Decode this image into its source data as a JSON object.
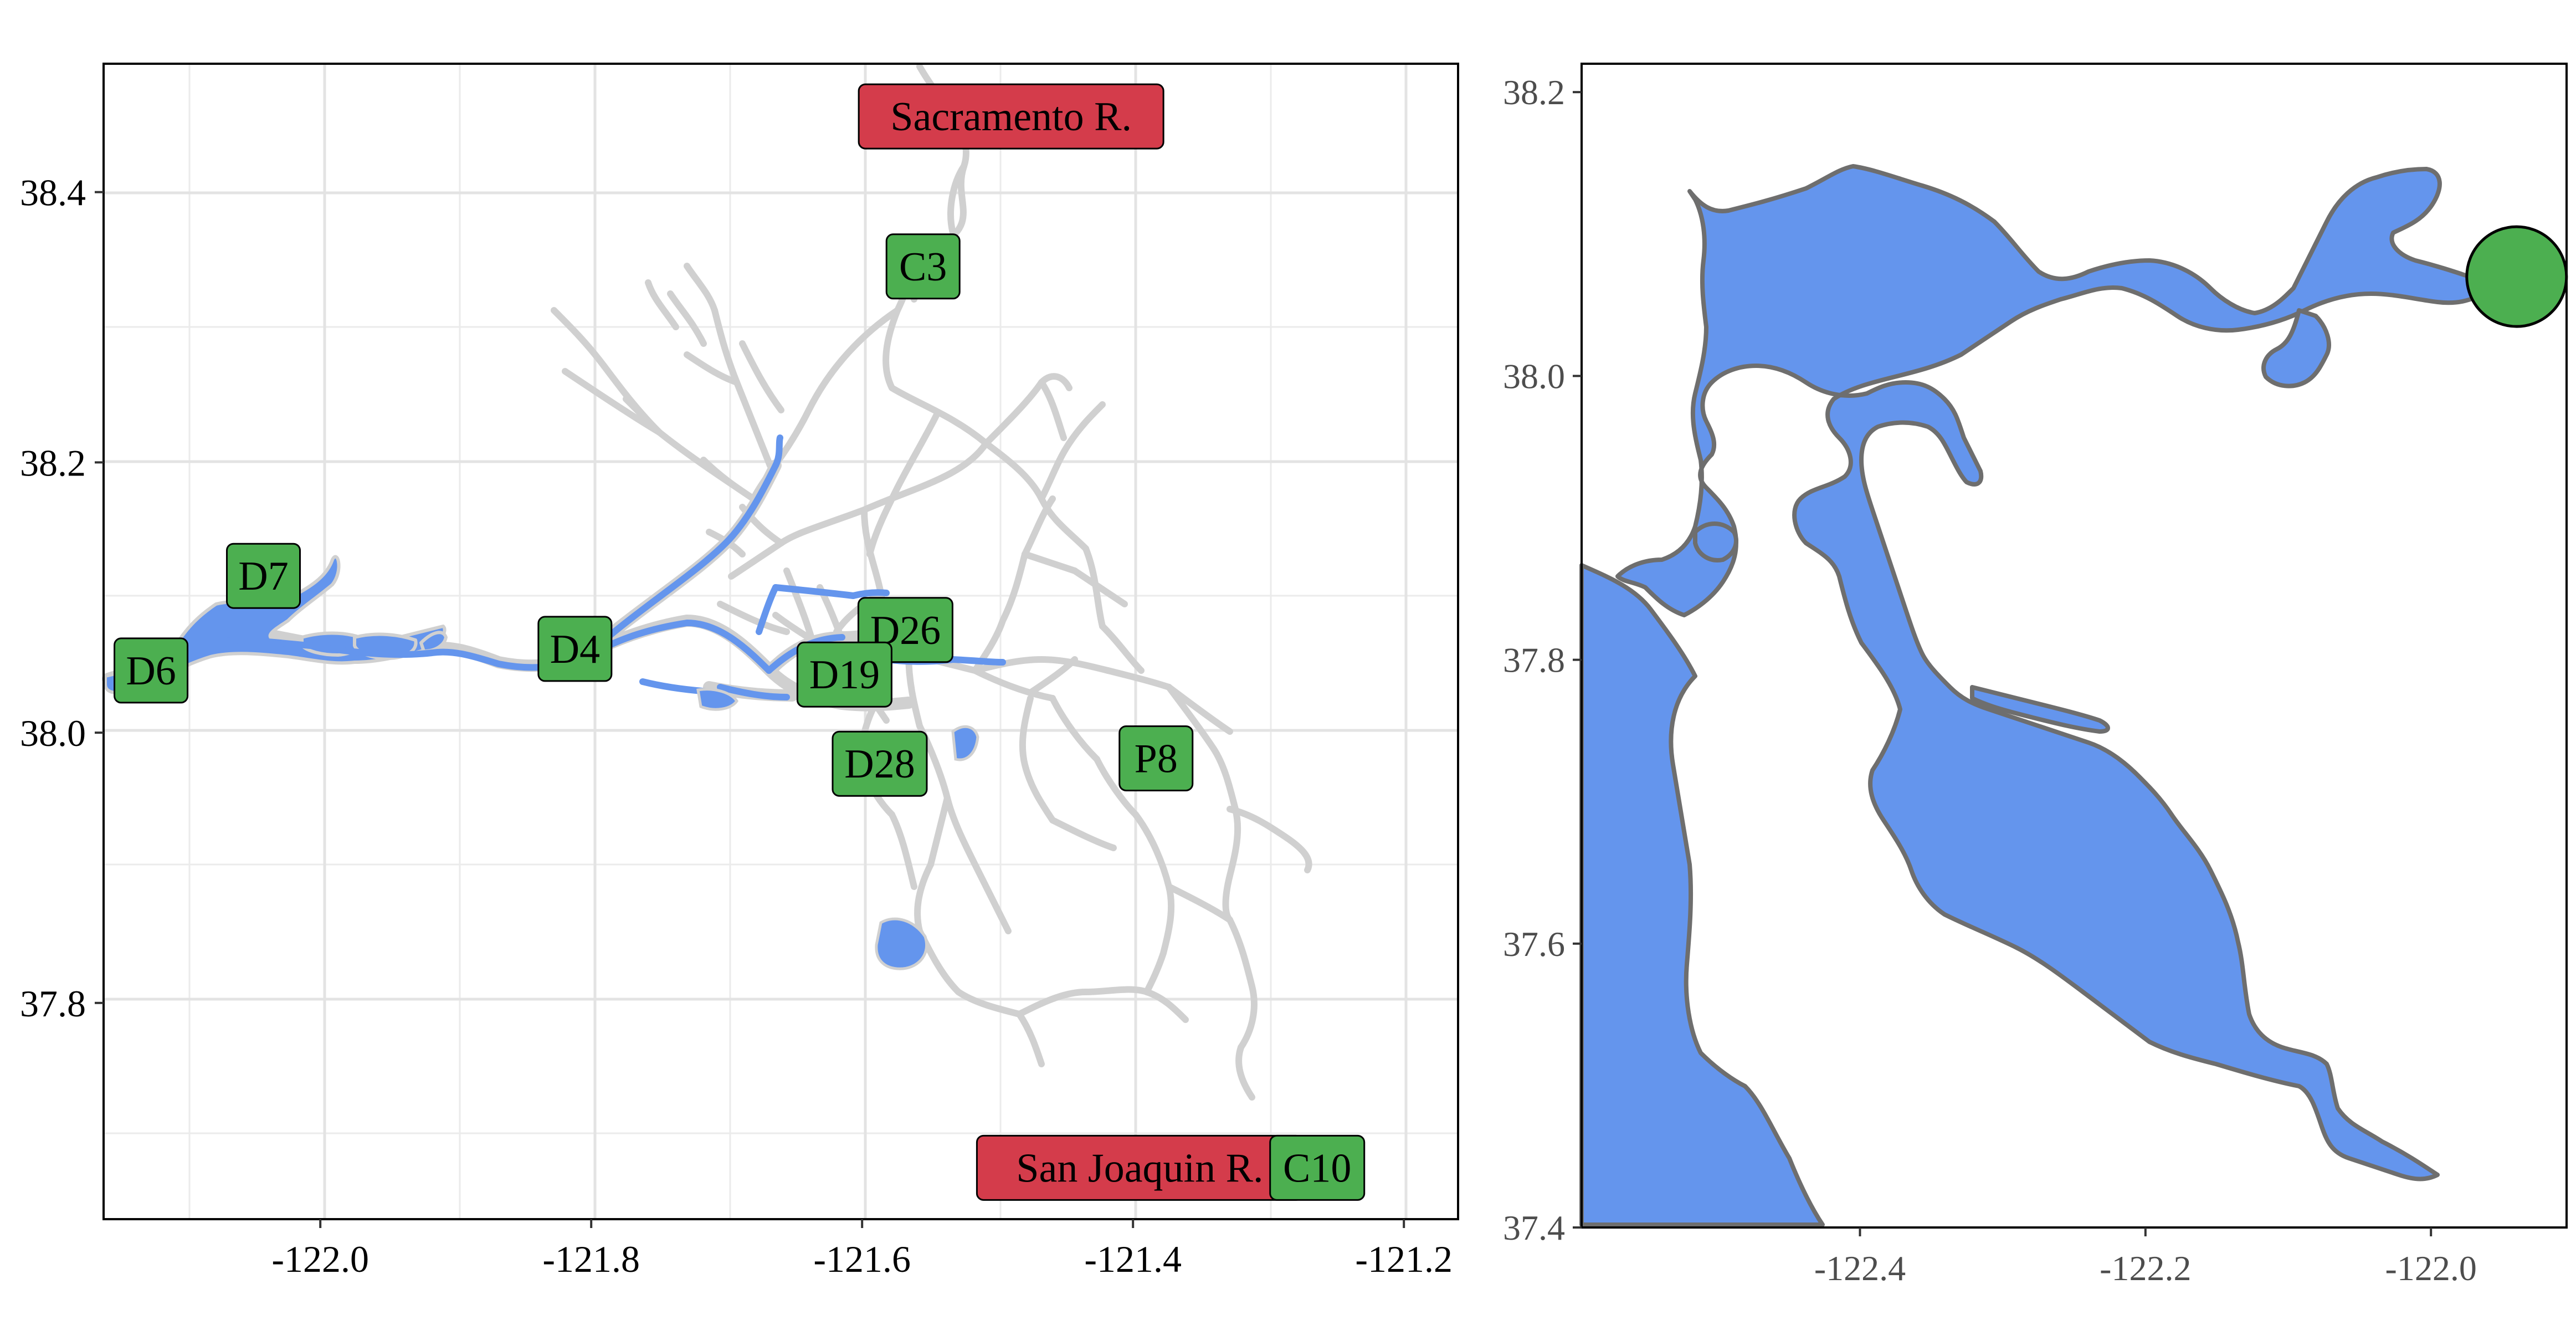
{
  "left_map": {
    "x_ticks": [
      {
        "value": -122.0,
        "label": "-122.0"
      },
      {
        "value": -121.8,
        "label": "-121.8"
      },
      {
        "value": -121.6,
        "label": "-121.6"
      },
      {
        "value": -121.4,
        "label": "-121.4"
      },
      {
        "value": -121.2,
        "label": "-121.2"
      }
    ],
    "y_ticks": [
      {
        "value": 38.4,
        "label": "38.4"
      },
      {
        "value": 38.2,
        "label": "38.2"
      },
      {
        "value": 38.0,
        "label": "38.0"
      },
      {
        "value": 37.8,
        "label": "37.8"
      }
    ],
    "x_range": [
      -122.16,
      -121.16
    ],
    "y_range": [
      37.64,
      38.495
    ],
    "river_labels": [
      {
        "text": "Sacramento R.",
        "lon": -121.49,
        "lat": 38.456,
        "fill": "#d43c4b"
      },
      {
        "text": "San Joaquin R.",
        "lon": -121.395,
        "lat": 37.678,
        "fill": "#d43c4b"
      }
    ],
    "stations": [
      {
        "text": "C3",
        "lon": -121.555,
        "lat": 38.345
      },
      {
        "text": "D7",
        "lon": -122.042,
        "lat": 38.116
      },
      {
        "text": "D6",
        "lon": -122.125,
        "lat": 38.046
      },
      {
        "text": "D4",
        "lon": -121.812,
        "lat": 38.062
      },
      {
        "text": "D26",
        "lon": -121.568,
        "lat": 38.076
      },
      {
        "text": "D19",
        "lon": -121.613,
        "lat": 38.043
      },
      {
        "text": "D28",
        "lon": -121.587,
        "lat": 37.977
      },
      {
        "text": "P8",
        "lon": -121.383,
        "lat": 37.981
      },
      {
        "text": "C10",
        "lon": -121.264,
        "lat": 37.678
      }
    ],
    "colors": {
      "water": "#6495ed",
      "channel": "#d0d0d0",
      "station_fill": "#4caf50"
    }
  },
  "right_map": {
    "x_ticks": [
      {
        "value": -122.4,
        "label": "-122.4"
      },
      {
        "value": -122.2,
        "label": "-122.2"
      },
      {
        "value": -122.0,
        "label": "-122.0"
      }
    ],
    "y_ticks": [
      {
        "value": 38.2,
        "label": "38.2"
      },
      {
        "value": 38.0,
        "label": "38.0"
      },
      {
        "value": 37.8,
        "label": "37.8"
      },
      {
        "value": 37.6,
        "label": "37.6"
      },
      {
        "value": 37.4,
        "label": "37.4"
      }
    ],
    "x_range": [
      -122.595,
      -121.905
    ],
    "y_range": [
      37.4,
      38.22
    ],
    "inset_marker": {
      "lon": -121.94,
      "lat": 38.07
    },
    "colors": {
      "water": "#6495ed",
      "shoreline": "#6e6e6e",
      "marker": "#4caf50"
    }
  }
}
